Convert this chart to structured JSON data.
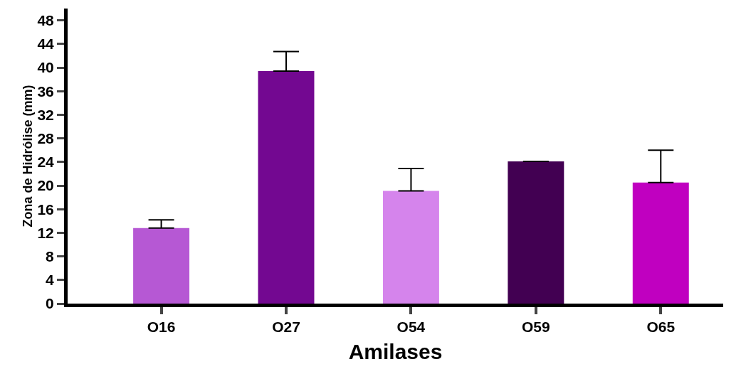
{
  "chart_data": {
    "type": "bar",
    "xlabel": "Amilases",
    "ylabel": "Zona de Hidrólise (mm)",
    "categories": [
      "O16",
      "O27",
      "O54",
      "O59",
      "O65"
    ],
    "values": [
      12.8,
      39.4,
      19.1,
      24.1,
      20.5
    ],
    "colors": [
      "#b658d4",
      "#730891",
      "#d584ec",
      "#420052",
      "#c000c0"
    ],
    "errors": [
      [
        12.8,
        14.2
      ],
      [
        39.4,
        42.7
      ],
      [
        19.1,
        22.9
      ],
      null,
      [
        20.5,
        26.0
      ]
    ],
    "ylim": [
      0,
      50
    ],
    "yticks": [
      0,
      4,
      8,
      12,
      16,
      20,
      24,
      28,
      32,
      36,
      40,
      44,
      48
    ]
  }
}
